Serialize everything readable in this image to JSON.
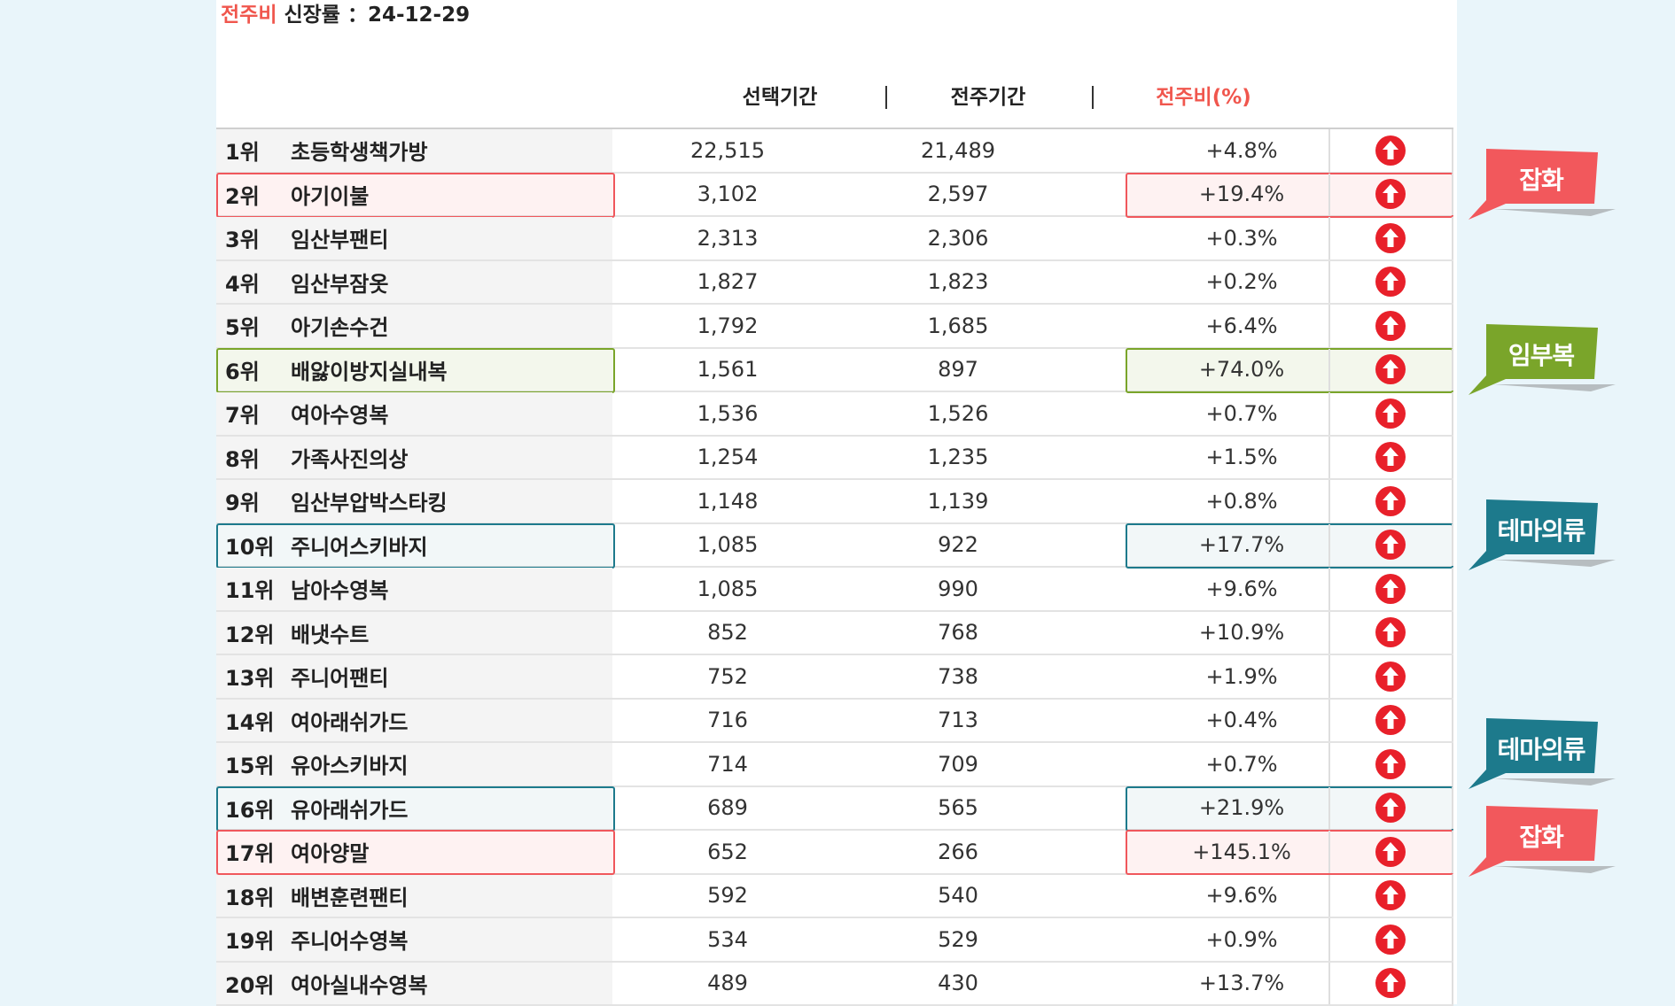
{
  "title": {
    "accent": "전주비",
    "text": " 신장률 ：24-12-29"
  },
  "columns": {
    "selected": "선택기간",
    "previous": "전주기간",
    "ratio": "전주비(%)",
    "separator": "|"
  },
  "rows": [
    {
      "rank": "1위",
      "name": "초등학생책가방",
      "selected": "22,515",
      "previous": "21,489",
      "ratio": "+4.8%",
      "highlight": ""
    },
    {
      "rank": "2위",
      "name": "아기이불",
      "selected": "3,102",
      "previous": "2,597",
      "ratio": "+19.4%",
      "highlight": "red"
    },
    {
      "rank": "3위",
      "name": "임산부팬티",
      "selected": "2,313",
      "previous": "2,306",
      "ratio": "+0.3%",
      "highlight": ""
    },
    {
      "rank": "4위",
      "name": "임산부잠옷",
      "selected": "1,827",
      "previous": "1,823",
      "ratio": "+0.2%",
      "highlight": ""
    },
    {
      "rank": "5위",
      "name": "아기손수건",
      "selected": "1,792",
      "previous": "1,685",
      "ratio": "+6.4%",
      "highlight": ""
    },
    {
      "rank": "6위",
      "name": "배앓이방지실내복",
      "selected": "1,561",
      "previous": "897",
      "ratio": "+74.0%",
      "highlight": "green"
    },
    {
      "rank": "7위",
      "name": "여아수영복",
      "selected": "1,536",
      "previous": "1,526",
      "ratio": "+0.7%",
      "highlight": ""
    },
    {
      "rank": "8위",
      "name": "가족사진의상",
      "selected": "1,254",
      "previous": "1,235",
      "ratio": "+1.5%",
      "highlight": ""
    },
    {
      "rank": "9위",
      "name": "임산부압박스타킹",
      "selected": "1,148",
      "previous": "1,139",
      "ratio": "+0.8%",
      "highlight": ""
    },
    {
      "rank": "10위",
      "name": "주니어스키바지",
      "selected": "1,085",
      "previous": "922",
      "ratio": "+17.7%",
      "highlight": "teal"
    },
    {
      "rank": "11위",
      "name": "남아수영복",
      "selected": "1,085",
      "previous": "990",
      "ratio": "+9.6%",
      "highlight": ""
    },
    {
      "rank": "12위",
      "name": "배냇수트",
      "selected": "852",
      "previous": "768",
      "ratio": "+10.9%",
      "highlight": ""
    },
    {
      "rank": "13위",
      "name": "주니어팬티",
      "selected": "752",
      "previous": "738",
      "ratio": "+1.9%",
      "highlight": ""
    },
    {
      "rank": "14위",
      "name": "여아래쉬가드",
      "selected": "716",
      "previous": "713",
      "ratio": "+0.4%",
      "highlight": ""
    },
    {
      "rank": "15위",
      "name": "유아스키바지",
      "selected": "714",
      "previous": "709",
      "ratio": "+0.7%",
      "highlight": ""
    },
    {
      "rank": "16위",
      "name": "유아래쉬가드",
      "selected": "689",
      "previous": "565",
      "ratio": "+21.9%",
      "highlight": "teal"
    },
    {
      "rank": "17위",
      "name": "여아양말",
      "selected": "652",
      "previous": "266",
      "ratio": "+145.1%",
      "highlight": "red"
    },
    {
      "rank": "18위",
      "name": "배변훈련팬티",
      "selected": "592",
      "previous": "540",
      "ratio": "+9.6%",
      "highlight": ""
    },
    {
      "rank": "19위",
      "name": "주니어수영복",
      "selected": "534",
      "previous": "529",
      "ratio": "+0.9%",
      "highlight": ""
    },
    {
      "rank": "20위",
      "name": "여아실내수영복",
      "selected": "489",
      "previous": "430",
      "ratio": "+13.7%",
      "highlight": ""
    }
  ],
  "tags": [
    {
      "label": "잡화",
      "color": "#f2585c",
      "row": 1
    },
    {
      "label": "임부복",
      "color": "#7aa52a",
      "row": 5
    },
    {
      "label": "테마의류",
      "color": "#1d7a8c",
      "row": 9
    },
    {
      "label": "테마의류",
      "color": "#1d7a8c",
      "row": 14
    },
    {
      "label": "잡화",
      "color": "#f2585c",
      "row": 16
    }
  ],
  "icons": {
    "trend": "arrow-up-circle-icon"
  },
  "colors": {
    "accent": "#f0564d",
    "up_icon": "#e8202a",
    "background": "#e9f5fa"
  }
}
